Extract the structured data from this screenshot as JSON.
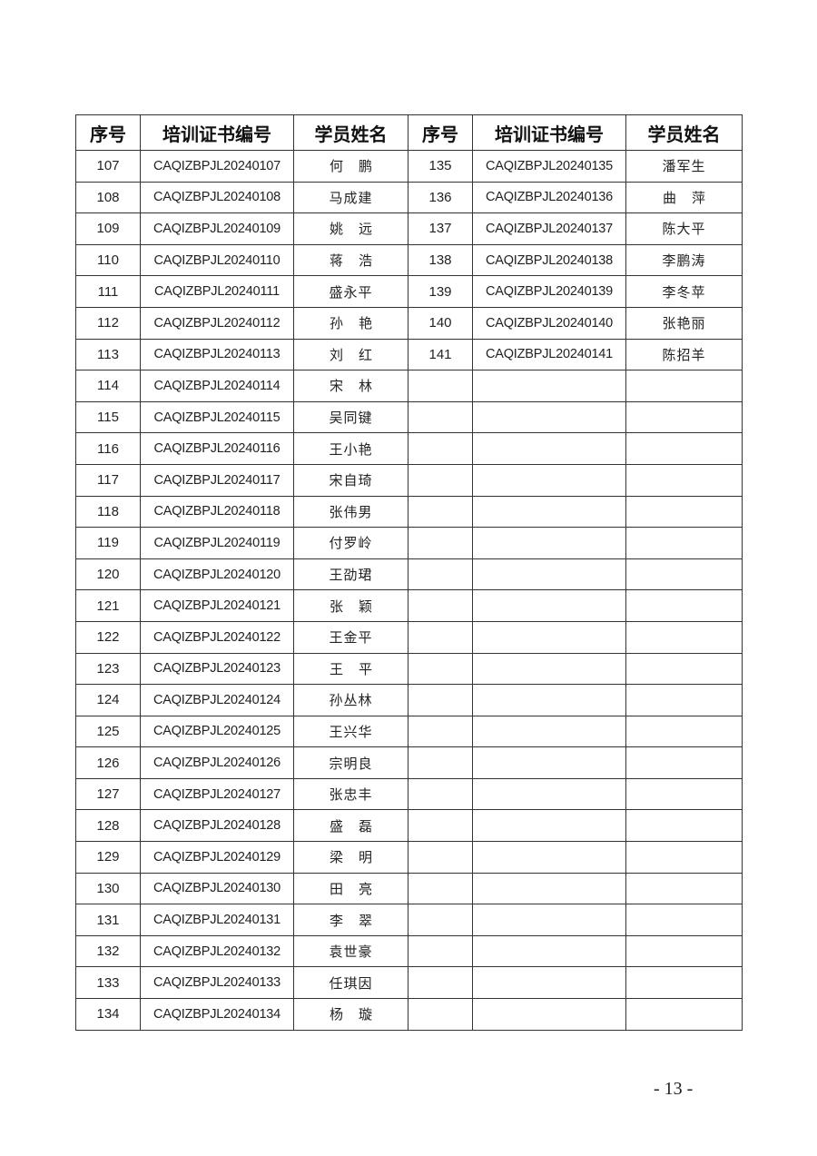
{
  "headers": [
    "序号",
    "培训证书编号",
    "学员姓名",
    "序号",
    "培训证书编号",
    "学员姓名"
  ],
  "left_rows": [
    [
      "107",
      "CAQIZBPJL20240107",
      "何鹏"
    ],
    [
      "108",
      "CAQIZBPJL20240108",
      "马成建"
    ],
    [
      "109",
      "CAQIZBPJL20240109",
      "姚远"
    ],
    [
      "110",
      "CAQIZBPJL20240110",
      "蒋浩"
    ],
    [
      "111",
      "CAQIZBPJL20240111",
      "盛永平"
    ],
    [
      "112",
      "CAQIZBPJL20240112",
      "孙艳"
    ],
    [
      "113",
      "CAQIZBPJL20240113",
      "刘红"
    ],
    [
      "114",
      "CAQIZBPJL20240114",
      "宋林"
    ],
    [
      "115",
      "CAQIZBPJL20240115",
      "吴同键"
    ],
    [
      "116",
      "CAQIZBPJL20240116",
      "王小艳"
    ],
    [
      "117",
      "CAQIZBPJL20240117",
      "宋自琦"
    ],
    [
      "118",
      "CAQIZBPJL20240118",
      "张伟男"
    ],
    [
      "119",
      "CAQIZBPJL20240119",
      "付罗岭"
    ],
    [
      "120",
      "CAQIZBPJL20240120",
      "王劭珺"
    ],
    [
      "121",
      "CAQIZBPJL20240121",
      "张颖"
    ],
    [
      "122",
      "CAQIZBPJL20240122",
      "王金平"
    ],
    [
      "123",
      "CAQIZBPJL20240123",
      "王平"
    ],
    [
      "124",
      "CAQIZBPJL20240124",
      "孙丛林"
    ],
    [
      "125",
      "CAQIZBPJL20240125",
      "王兴华"
    ],
    [
      "126",
      "CAQIZBPJL20240126",
      "宗明良"
    ],
    [
      "127",
      "CAQIZBPJL20240127",
      "张忠丰"
    ],
    [
      "128",
      "CAQIZBPJL20240128",
      "盛磊"
    ],
    [
      "129",
      "CAQIZBPJL20240129",
      "梁明"
    ],
    [
      "130",
      "CAQIZBPJL20240130",
      "田亮"
    ],
    [
      "131",
      "CAQIZBPJL20240131",
      "李翠"
    ],
    [
      "132",
      "CAQIZBPJL20240132",
      "袁世豪"
    ],
    [
      "133",
      "CAQIZBPJL20240133",
      "任琪因"
    ],
    [
      "134",
      "CAQIZBPJL20240134",
      "杨璇"
    ]
  ],
  "right_rows": [
    [
      "135",
      "CAQIZBPJL20240135",
      "潘军生"
    ],
    [
      "136",
      "CAQIZBPJL20240136",
      "曲萍"
    ],
    [
      "137",
      "CAQIZBPJL20240137",
      "陈大平"
    ],
    [
      "138",
      "CAQIZBPJL20240138",
      "李鹏涛"
    ],
    [
      "139",
      "CAQIZBPJL20240139",
      "李冬苹"
    ],
    [
      "140",
      "CAQIZBPJL20240140",
      "张艳丽"
    ],
    [
      "141",
      "CAQIZBPJL20240141",
      "陈招羊"
    ]
  ],
  "page_number": "- 13 -"
}
